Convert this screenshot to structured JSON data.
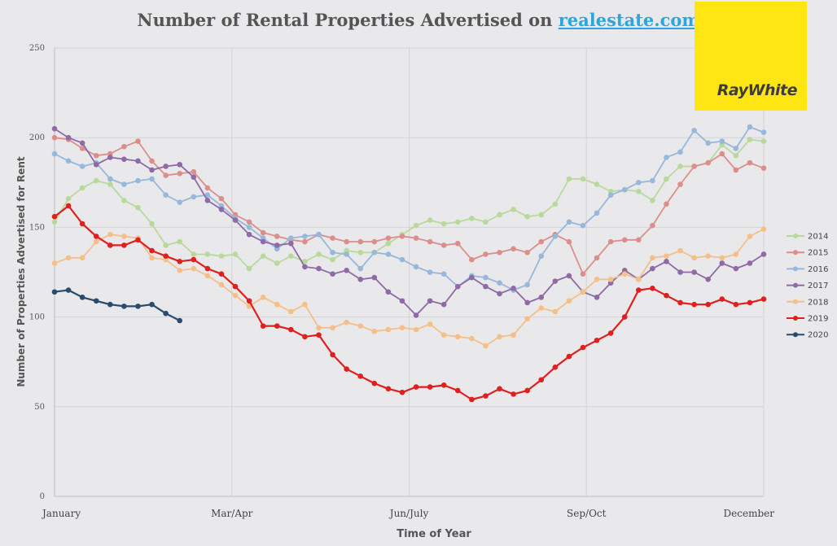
{
  "header": {
    "title_prefix": "Number of Rental Properties Advertised on ",
    "title_link": "realestate.com"
  },
  "logo": {
    "text": "RayWhite"
  },
  "chart_data": {
    "type": "line",
    "title": "Number of Rental Properties Advertised on realestate.com",
    "xlabel": "Time of Year",
    "ylabel": "Number of Properties Advertised for Rent",
    "ylim": [
      0,
      250
    ],
    "yticks": [
      0,
      50,
      100,
      150,
      200,
      250
    ],
    "x_tick_labels": [
      "January",
      "Mar/Apr",
      "Jun/July",
      "Sep/Oct",
      "December"
    ],
    "x_index_range": [
      0,
      51
    ],
    "grid": true,
    "legend_position": "right",
    "series": [
      {
        "name": "2014",
        "color": "#b9d99c",
        "values": [
          153,
          166,
          172,
          176,
          174,
          165,
          161,
          152,
          140,
          142,
          135,
          135,
          134,
          135,
          127,
          134,
          130,
          134,
          131,
          135,
          132,
          137,
          136,
          136,
          141,
          146,
          151,
          154,
          152,
          153,
          155,
          153,
          157,
          160,
          156,
          157,
          163,
          177,
          177,
          174,
          170,
          171,
          170,
          165,
          177,
          184,
          184,
          186,
          196,
          190,
          199,
          198
        ]
      },
      {
        "name": "2015",
        "color": "#dc8e8a",
        "values": [
          200,
          199,
          194,
          190,
          191,
          195,
          198,
          187,
          179,
          180,
          181,
          172,
          166,
          157,
          153,
          147,
          145,
          143,
          142,
          146,
          144,
          142,
          142,
          142,
          144,
          145,
          144,
          142,
          140,
          141,
          132,
          135,
          136,
          138,
          136,
          142,
          146,
          142,
          124,
          133,
          142,
          143,
          143,
          151,
          163,
          174,
          184,
          186,
          191,
          182,
          186,
          183
        ]
      },
      {
        "name": "2016",
        "color": "#97b7db",
        "values": [
          191,
          187,
          184,
          186,
          177,
          174,
          176,
          177,
          168,
          164,
          167,
          168,
          162,
          155,
          150,
          144,
          138,
          144,
          145,
          146,
          136,
          135,
          127,
          136,
          135,
          132,
          128,
          125,
          124,
          117,
          123,
          122,
          119,
          115,
          118,
          134,
          145,
          153,
          151,
          158,
          168,
          171,
          175,
          176,
          189,
          192,
          204,
          197,
          198,
          194,
          206,
          203
        ]
      },
      {
        "name": "2017",
        "color": "#8e6aa6",
        "values": [
          205,
          200,
          197,
          185,
          189,
          188,
          187,
          182,
          184,
          185,
          178,
          165,
          160,
          154,
          146,
          142,
          140,
          141,
          128,
          127,
          124,
          126,
          121,
          122,
          114,
          109,
          101,
          109,
          107,
          117,
          122,
          117,
          113,
          116,
          108,
          111,
          120,
          123,
          114,
          111,
          119,
          126,
          121,
          127,
          131,
          125,
          125,
          121,
          130,
          127,
          130,
          135
        ]
      },
      {
        "name": "2018",
        "color": "#f5bf8a",
        "values": [
          130,
          133,
          133,
          142,
          146,
          145,
          144,
          133,
          132,
          126,
          127,
          123,
          118,
          112,
          106,
          111,
          107,
          103,
          107,
          94,
          94,
          97,
          95,
          92,
          93,
          94,
          93,
          96,
          90,
          89,
          88,
          84,
          89,
          90,
          99,
          105,
          103,
          109,
          114,
          121,
          121,
          124,
          121,
          133,
          134,
          137,
          133,
          134,
          133,
          135,
          145,
          149
        ]
      },
      {
        "name": "2019",
        "color": "#e01f1f",
        "values": [
          156,
          162,
          152,
          145,
          140,
          140,
          143,
          137,
          134,
          131,
          132,
          127,
          124,
          117,
          109,
          95,
          95,
          93,
          89,
          90,
          79,
          71,
          67,
          63,
          60,
          58,
          61,
          61,
          62,
          59,
          54,
          56,
          60,
          57,
          59,
          65,
          72,
          78,
          83,
          87,
          91,
          100,
          115,
          116,
          112,
          108,
          107,
          107,
          110,
          107,
          108,
          110
        ]
      },
      {
        "name": "2020",
        "color": "#2a4a6e",
        "values": [
          114,
          115,
          111,
          109,
          107,
          106,
          106,
          107,
          102,
          98
        ]
      }
    ]
  }
}
